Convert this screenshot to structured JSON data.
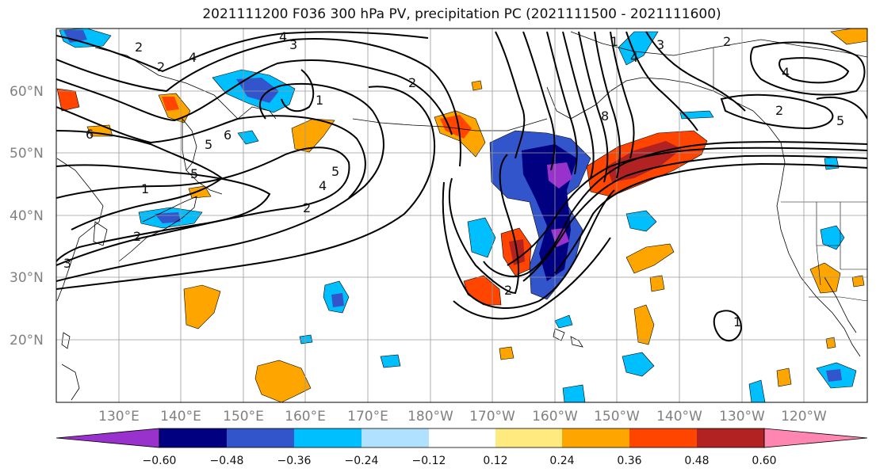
{
  "title": "2021111200 F036 300 hPa PV, precipitation PC (2021111500 - 2021111600)",
  "lat_labels": [
    "60°N",
    "50°N",
    "40°N",
    "30°N",
    "20°N"
  ],
  "lon_labels": [
    "130°E",
    "140°E",
    "150°E",
    "160°E",
    "170°E",
    "180°W",
    "170°W",
    "160°W",
    "150°W",
    "140°W",
    "130°W",
    "120°W"
  ],
  "colorbar": {
    "colors": [
      "#9932cc",
      "#000080",
      "#3355cc",
      "#00bfff",
      "#b0e2ff",
      "#ffffff",
      "#ffea80",
      "#ffa500",
      "#ff4500",
      "#b22222",
      "#ff86b0"
    ],
    "tick_labels": [
      "−0.60",
      "−0.48",
      "−0.36",
      "−0.24",
      "−0.12",
      "0.12",
      "0.24",
      "0.36",
      "0.48",
      "0.60"
    ]
  },
  "contour_labels": [
    "4",
    "3",
    "2",
    "4",
    "1",
    "2",
    "5",
    "6",
    "2",
    "5",
    "1",
    "2",
    "3",
    "5",
    "4",
    "2",
    "2",
    "8",
    "1",
    "4",
    "3",
    "2",
    "4",
    "2",
    "5",
    "1",
    "6"
  ],
  "chart_data": {
    "type": "map",
    "title": "2021111200 F036 300 hPa PV, precipitation PC (2021111500 - 2021111600)",
    "lon_range_deg_east": [
      120,
      250
    ],
    "lat_range_deg_north": [
      10,
      70
    ],
    "shaded_field": "precipitation PC",
    "shading_levels": [
      -0.6,
      -0.48,
      -0.36,
      -0.24,
      -0.12,
      0.12,
      0.24,
      0.36,
      0.48,
      0.6
    ],
    "contour_field": "300 hPa PV",
    "contour_levels_shown": [
      1,
      2,
      3,
      4,
      5,
      6,
      8
    ],
    "grid": true
  }
}
